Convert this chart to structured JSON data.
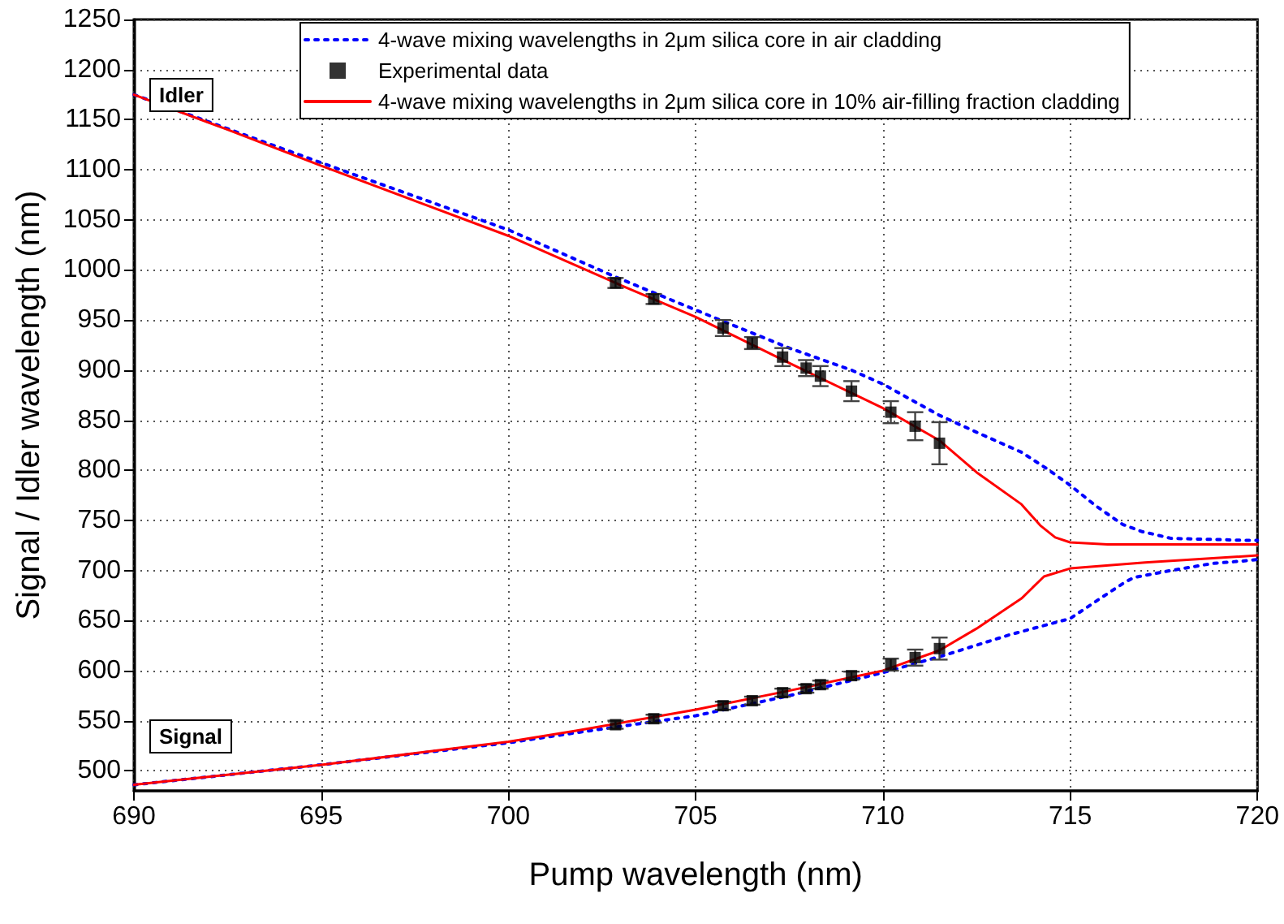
{
  "chart_data": {
    "type": "line",
    "xlabel": "Pump wavelength (nm)",
    "ylabel": "Signal / Idler wavelength (nm)",
    "xlim": [
      690,
      720
    ],
    "xticks": [
      690,
      695,
      700,
      705,
      710,
      715,
      720
    ],
    "ylim": [
      480,
      1250
    ],
    "yticks": [
      500,
      550,
      600,
      650,
      700,
      750,
      800,
      850,
      900,
      950,
      1000,
      1050,
      1100,
      1150,
      1200,
      1250
    ],
    "grid": true,
    "legend": "top",
    "annotations": [
      "Idler",
      "Signal"
    ],
    "series": [
      {
        "name": "4-wave mixing wavelengths in 2μm silica core in air cladding",
        "color": "#0000ff",
        "line_style": "dotted",
        "marker": "none",
        "x": [
          690,
          695,
          700,
          702.86,
          705,
          707.5,
          709.16,
          710,
          711.5,
          712.5,
          713.7,
          714.4,
          715,
          715.7,
          716.4,
          716.9,
          717.7,
          719.8,
          720,
          null,
          690,
          695,
          700,
          701.8,
          705,
          707.5,
          710,
          711.7,
          713.4,
          715,
          715.8,
          716.45,
          716.7,
          717.7,
          718.8,
          719.8,
          720
        ],
        "values": [
          1175,
          1107,
          1040,
          993,
          960,
          922,
          900,
          886,
          855,
          838,
          818,
          801,
          785,
          764,
          746,
          739,
          732,
          730,
          730,
          null,
          486,
          506,
          528,
          538,
          555,
          575,
          598,
          616,
          636,
          652,
          672,
          688,
          693,
          700,
          707,
          710,
          711
        ]
      },
      {
        "name": "Experimental data",
        "type": "scatter",
        "color": "#000000",
        "marker": "square",
        "x": [
          702.86,
          703.88,
          705.73,
          706.51,
          707.32,
          707.95,
          708.33,
          709.16,
          710.21,
          710.86,
          711.51,
          702.86,
          703.88,
          705.73,
          706.51,
          707.32,
          707.95,
          708.33,
          709.16,
          710.21,
          710.86,
          711.51
        ],
        "values": [
          987,
          971,
          942,
          927,
          913,
          902,
          894,
          879,
          858,
          844,
          827,
          546,
          552,
          565,
          570,
          578,
          582,
          586,
          595,
          606,
          613,
          622
        ],
        "errors": [
          5,
          5,
          8,
          6,
          9,
          8,
          10,
          10,
          11,
          14,
          21,
          4,
          4,
          4,
          4,
          4,
          4,
          4,
          4,
          6,
          8,
          11
        ]
      },
      {
        "name": "4-wave mixing wavelengths in 2μm silica core in 10% air-filling fraction cladding",
        "color": "#ff0000",
        "line_style": "solid",
        "marker": "none",
        "x": [
          690,
          692.5,
          695,
          697.5,
          700,
          702.86,
          705,
          707.5,
          710,
          711.5,
          712.5,
          713.7,
          714.2,
          714.6,
          715,
          716,
          718,
          720,
          null,
          690,
          695,
          700,
          701.8,
          705,
          707.5,
          710,
          711.5,
          712.5,
          713.7,
          714.3,
          715,
          717,
          720
        ],
        "values": [
          1175,
          1140,
          1104,
          1069,
          1034,
          987,
          953,
          907,
          862,
          830,
          798,
          766,
          745,
          733,
          728,
          726,
          726,
          726,
          null,
          486,
          506,
          529,
          540,
          561,
          580,
          600,
          620,
          642,
          672,
          694,
          702,
          708,
          715
        ]
      }
    ]
  }
}
